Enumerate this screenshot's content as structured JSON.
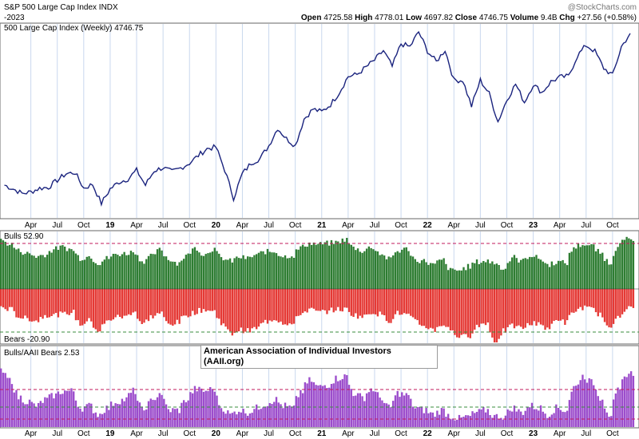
{
  "header": {
    "symbol_title": "S&P 500 Large Cap Index",
    "symbol": "INDX",
    "date_fragment": "-2023",
    "watermark": "@StockCharts.com",
    "ohlc": [
      {
        "label": "Open",
        "value": "4725.58"
      },
      {
        "label": "High",
        "value": "4778.01"
      },
      {
        "label": "Low",
        "value": "4697.82"
      },
      {
        "label": "Close",
        "value": "4746.75"
      },
      {
        "label": "Volume",
        "value": "9.4B"
      },
      {
        "label": "Chg",
        "value": "+27.56 (+0.58%)"
      }
    ]
  },
  "note": {
    "line1": "American Association of Individual Investors",
    "line2": "(AAII.org)"
  },
  "colors": {
    "price_line": "#1a237e",
    "bulls": "#2e7d32",
    "bears": "#e53935",
    "ratio": "#9c4dcc",
    "guide": "#c2185b",
    "guide_green": "#388e3c",
    "grid": "#c9d8ee"
  },
  "chart_data": [
    {
      "type": "line",
      "legend": "500 Large Cap Index (Weekly) 4746.75",
      "x": [
        "2018-01",
        "2018-02",
        "2018-03",
        "2018-04",
        "2018-05",
        "2018-06",
        "2018-07",
        "2018-08",
        "2018-09",
        "2018-10",
        "2018-11",
        "2018-12",
        "2019-01",
        "2019-02",
        "2019-03",
        "2019-04",
        "2019-05",
        "2019-06",
        "2019-07",
        "2019-08",
        "2019-09",
        "2019-10",
        "2019-11",
        "2019-12",
        "2020-01",
        "2020-02",
        "2020-03",
        "2020-04",
        "2020-05",
        "2020-06",
        "2020-07",
        "2020-08",
        "2020-09",
        "2020-10",
        "2020-11",
        "2020-12",
        "2021-01",
        "2021-02",
        "2021-03",
        "2021-04",
        "2021-05",
        "2021-06",
        "2021-07",
        "2021-08",
        "2021-09",
        "2021-10",
        "2021-11",
        "2021-12",
        "2022-01",
        "2022-02",
        "2022-03",
        "2022-04",
        "2022-05",
        "2022-06",
        "2022-07",
        "2022-08",
        "2022-09",
        "2022-10",
        "2022-11",
        "2022-12",
        "2023-01",
        "2023-02",
        "2023-03",
        "2023-04",
        "2023-05",
        "2023-06",
        "2023-07",
        "2023-08",
        "2023-09",
        "2023-10",
        "2023-11",
        "2023-12"
      ],
      "values": [
        2750,
        2700,
        2640,
        2660,
        2710,
        2720,
        2815,
        2900,
        2915,
        2710,
        2760,
        2510,
        2700,
        2790,
        2830,
        2945,
        2750,
        2940,
        2980,
        2925,
        2975,
        3040,
        3140,
        3230,
        3250,
        2950,
        2580,
        2900,
        3040,
        3100,
        3270,
        3500,
        3360,
        3270,
        3620,
        3750,
        3714,
        3810,
        3970,
        4180,
        4205,
        4300,
        4395,
        4520,
        4310,
        4610,
        4570,
        4766,
        4515,
        4375,
        4530,
        4130,
        4130,
        3790,
        4130,
        3955,
        3585,
        3870,
        4080,
        3840,
        4075,
        3970,
        4110,
        4170,
        4180,
        4450,
        4590,
        4510,
        4290,
        4195,
        4570,
        4747
      ]
    },
    {
      "type": "bar",
      "legend_top": "Bulls 52.90",
      "legend_bottom": "Bears -20.90",
      "x_range": [
        "2018-01",
        "2023-12"
      ],
      "series": [
        {
          "name": "Bulls",
          "values": [
            52,
            48,
            41,
            38,
            35,
            37,
            43,
            45,
            42,
            33,
            35,
            28,
            33,
            37,
            38,
            40,
            30,
            35,
            42,
            32,
            28,
            36,
            44,
            37,
            43,
            33,
            30,
            34,
            33,
            37,
            40,
            40,
            35,
            36,
            45,
            49,
            48,
            49,
            50,
            53,
            44,
            41,
            45,
            38,
            32,
            41,
            43,
            31,
            30,
            26,
            31,
            20,
            20,
            24,
            29,
            30,
            28,
            22,
            34,
            30,
            36,
            33,
            26,
            29,
            28,
            45,
            48,
            46,
            38,
            28,
            48,
            53
          ]
        },
        {
          "name": "Bears",
          "values": [
            -20,
            -22,
            -30,
            -32,
            -34,
            -28,
            -28,
            -27,
            -25,
            -38,
            -34,
            -45,
            -35,
            -30,
            -30,
            -24,
            -38,
            -30,
            -26,
            -38,
            -36,
            -28,
            -25,
            -22,
            -24,
            -36,
            -48,
            -44,
            -45,
            -42,
            -35,
            -32,
            -36,
            -38,
            -26,
            -22,
            -25,
            -24,
            -22,
            -22,
            -28,
            -30,
            -25,
            -27,
            -34,
            -26,
            -28,
            -35,
            -40,
            -44,
            -38,
            -44,
            -52,
            -50,
            -40,
            -36,
            -58,
            -45,
            -40,
            -42,
            -38,
            -36,
            -44,
            -32,
            -36,
            -24,
            -20,
            -22,
            -28,
            -44,
            -28,
            -21
          ]
        }
      ],
      "ylim": [
        -60,
        60
      ]
    },
    {
      "type": "bar",
      "legend": "Bulls/AAII Bears 2.53",
      "x_range": [
        "2018-01",
        "2023-12"
      ],
      "series": [
        {
          "name": "Bulls/AAII Bears",
          "values": [
            2.6,
            2.2,
            1.4,
            1.2,
            1.0,
            1.3,
            1.5,
            1.7,
            1.7,
            0.9,
            1.0,
            0.6,
            0.9,
            1.2,
            1.3,
            1.7,
            0.8,
            1.2,
            1.6,
            0.8,
            0.8,
            1.3,
            1.8,
            1.7,
            1.8,
            0.9,
            0.6,
            0.8,
            0.7,
            0.9,
            1.1,
            1.3,
            1.0,
            0.9,
            1.7,
            2.2,
            1.9,
            2.0,
            2.3,
            2.4,
            1.6,
            1.4,
            1.8,
            1.4,
            0.9,
            1.6,
            1.5,
            0.9,
            0.8,
            0.6,
            0.8,
            0.5,
            0.4,
            0.5,
            0.7,
            0.8,
            0.5,
            0.5,
            0.9,
            0.7,
            1.0,
            0.9,
            0.6,
            0.9,
            0.8,
            1.9,
            2.4,
            2.1,
            1.4,
            0.6,
            1.7,
            2.53
          ]
        }
      ],
      "ylim": [
        0,
        3.4
      ]
    }
  ],
  "axis": {
    "labels": [
      {
        "text": "Apr",
        "month": 3,
        "year_label": false
      },
      {
        "text": "Jul",
        "month": 6,
        "year_label": false
      },
      {
        "text": "Oct",
        "month": 9,
        "year_label": false
      },
      {
        "text": "19",
        "month": 12,
        "year_label": true
      },
      {
        "text": "Apr",
        "month": 15,
        "year_label": false
      },
      {
        "text": "Jul",
        "month": 18,
        "year_label": false
      },
      {
        "text": "Oct",
        "month": 21,
        "year_label": false
      },
      {
        "text": "20",
        "month": 24,
        "year_label": true
      },
      {
        "text": "Apr",
        "month": 27,
        "year_label": false
      },
      {
        "text": "Jul",
        "month": 30,
        "year_label": false
      },
      {
        "text": "Oct",
        "month": 33,
        "year_label": false
      },
      {
        "text": "21",
        "month": 36,
        "year_label": true
      },
      {
        "text": "Apr",
        "month": 39,
        "year_label": false
      },
      {
        "text": "Jul",
        "month": 42,
        "year_label": false
      },
      {
        "text": "Oct",
        "month": 45,
        "year_label": false
      },
      {
        "text": "22",
        "month": 48,
        "year_label": true
      },
      {
        "text": "Apr",
        "month": 51,
        "year_label": false
      },
      {
        "text": "Jul",
        "month": 54,
        "year_label": false
      },
      {
        "text": "Oct",
        "month": 57,
        "year_label": false
      },
      {
        "text": "23",
        "month": 60,
        "year_label": true
      },
      {
        "text": "Apr",
        "month": 63,
        "year_label": false
      },
      {
        "text": "Jul",
        "month": 66,
        "year_label": false
      },
      {
        "text": "Oct",
        "month": 69,
        "year_label": false
      }
    ]
  }
}
